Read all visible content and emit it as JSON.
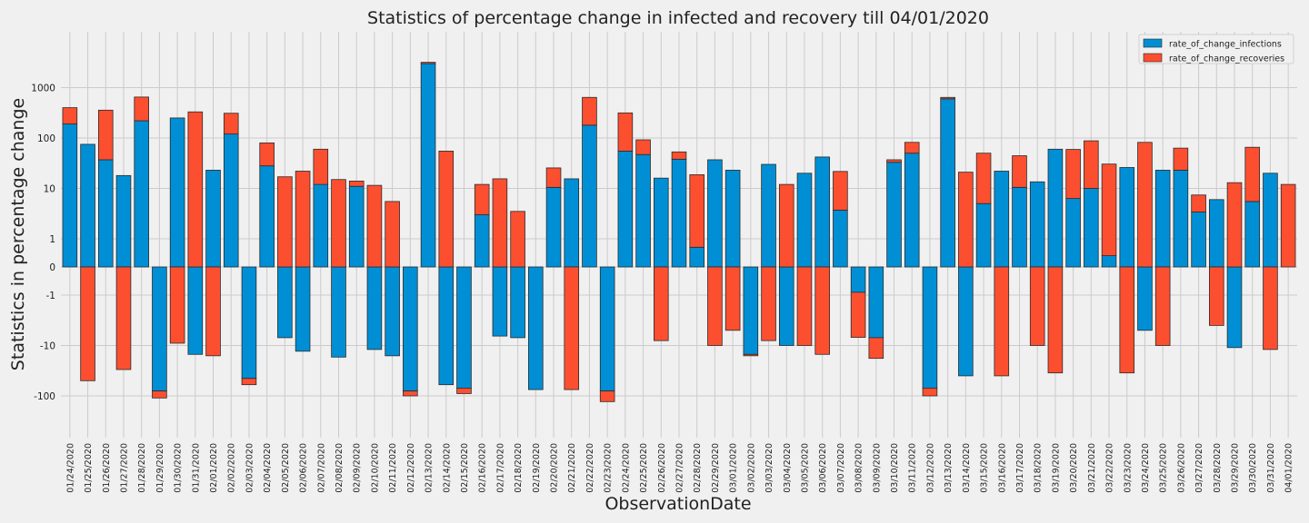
{
  "chart_data": {
    "type": "bar",
    "stacked": true,
    "title": "Statistics of percentage change in infected and recovery till 04/01/2020",
    "xlabel": "ObservationDate",
    "ylabel": "Statistics in percentage change",
    "yscale": "symlog",
    "yticks": [
      -100,
      -10,
      -1,
      0,
      1,
      10,
      100,
      1000
    ],
    "ytick_labels": [
      "-100",
      "-10",
      "-1",
      "0",
      "1",
      "10",
      "100",
      "1000"
    ],
    "grid": true,
    "legend_position": "top-right",
    "categories": [
      "01/24/2020",
      "01/25/2020",
      "01/26/2020",
      "01/27/2020",
      "01/28/2020",
      "01/29/2020",
      "01/30/2020",
      "01/31/2020",
      "02/01/2020",
      "02/02/2020",
      "02/03/2020",
      "02/04/2020",
      "02/05/2020",
      "02/06/2020",
      "02/07/2020",
      "02/08/2020",
      "02/09/2020",
      "02/10/2020",
      "02/11/2020",
      "02/12/2020",
      "02/13/2020",
      "02/14/2020",
      "02/15/2020",
      "02/16/2020",
      "02/17/2020",
      "02/18/2020",
      "02/19/2020",
      "02/20/2020",
      "02/21/2020",
      "02/22/2020",
      "02/23/2020",
      "02/24/2020",
      "02/25/2020",
      "02/26/2020",
      "02/27/2020",
      "02/28/2020",
      "02/29/2020",
      "03/01/2020",
      "03/02/2020",
      "03/03/2020",
      "03/04/2020",
      "03/05/2020",
      "03/06/2020",
      "03/07/2020",
      "03/08/2020",
      "03/09/2020",
      "03/10/2020",
      "03/11/2020",
      "03/12/2020",
      "03/13/2020",
      "03/14/2020",
      "03/15/2020",
      "03/16/2020",
      "03/17/2020",
      "03/18/2020",
      "03/19/2020",
      "03/20/2020",
      "03/21/2020",
      "03/22/2020",
      "03/23/2020",
      "03/24/2020",
      "03/25/2020",
      "03/26/2020",
      "03/27/2020",
      "03/28/2020",
      "03/29/2020",
      "03/30/2020",
      "03/31/2020",
      "04/01/2020"
    ],
    "series": [
      {
        "name": "rate_of_change_infections",
        "color": "#008fd5",
        "values": [
          190,
          75,
          37,
          18,
          220,
          -80,
          250,
          -15,
          23,
          120,
          -45,
          28,
          -7,
          -13,
          12,
          -17,
          11,
          -12,
          -16,
          -80,
          3000,
          -60,
          -70,
          3,
          -6.5,
          -7,
          -75,
          10.5,
          15.5,
          180,
          -80,
          55,
          47,
          16,
          38,
          0.7,
          37,
          23,
          -15,
          30,
          -10,
          20,
          42,
          3.7,
          -0.9,
          -7,
          33,
          50,
          -70,
          600,
          -40,
          5,
          22,
          10.5,
          13.5,
          60,
          6.3,
          10,
          0.4,
          26,
          -5,
          23,
          23,
          3.4,
          6,
          -11,
          5.5,
          20,
          0
        ]
      },
      {
        "name": "rate_of_change_recoveries",
        "color": "#fc4f30",
        "values": [
          210,
          -50,
          320,
          -30,
          430,
          -30,
          -9,
          330,
          -16,
          190,
          -15,
          52,
          17,
          22,
          48,
          15,
          3,
          11.5,
          5.5,
          -20,
          180,
          55,
          -20,
          9,
          15.5,
          3.5,
          0,
          15,
          -75,
          460,
          -50,
          260,
          45,
          -8,
          15,
          18,
          -10,
          -5,
          -1,
          -8,
          12,
          -10,
          -15,
          18,
          -6,
          -11,
          4,
          32,
          -30,
          40,
          21,
          45,
          -40,
          34,
          -10,
          -35,
          53,
          78,
          30,
          -35,
          82,
          -10,
          40,
          4,
          -4,
          13,
          60,
          -12,
          12
        ]
      }
    ]
  }
}
